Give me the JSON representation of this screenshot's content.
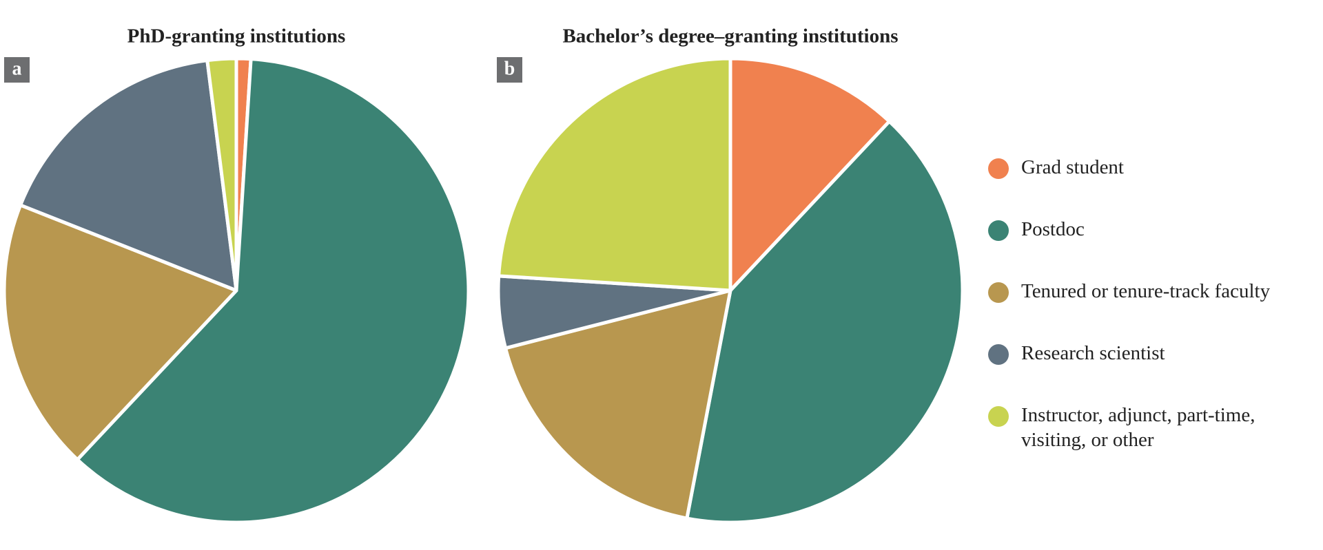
{
  "chart_data": [
    {
      "type": "pie",
      "title": "PhD-granting institutions",
      "panel_label": "a",
      "categories": [
        "Grad student",
        "Postdoc",
        "Tenured or tenure-track faculty",
        "Research scientist",
        "Instructor, adjunct, part-time, visiting, or other"
      ],
      "values": [
        1,
        61,
        19,
        17,
        2
      ],
      "colors": [
        "#f0814f",
        "#3b8374",
        "#b8974f",
        "#607281",
        "#c8d350"
      ]
    },
    {
      "type": "pie",
      "title": "Bachelor’s degree–granting institutions",
      "panel_label": "b",
      "categories": [
        "Grad student",
        "Postdoc",
        "Tenured or tenure-track faculty",
        "Research scientist",
        "Instructor, adjunct, part-time, visiting, or other"
      ],
      "values": [
        12,
        41,
        18,
        5,
        24
      ],
      "colors": [
        "#f0814f",
        "#3b8374",
        "#b8974f",
        "#607281",
        "#c8d350"
      ]
    }
  ]
}
